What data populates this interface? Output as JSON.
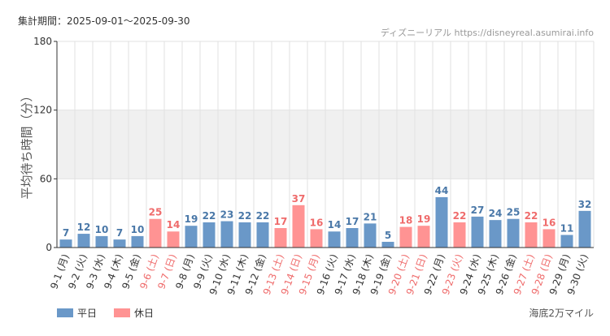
{
  "header": {
    "period_label": "集計期間：2025-09-01～2025-09-30",
    "source_label": "ディズニーリアル https://disneyreal.asumirai.info"
  },
  "footer": {
    "credit": "海底2万マイル"
  },
  "colors": {
    "weekday": "#6a98c8",
    "holiday": "#ff9393",
    "weekday_text": "#4a78a8",
    "holiday_text": "#ef6b6b",
    "band": "#f0f0f0",
    "grid": "#e2e2e2"
  },
  "chart_data": {
    "type": "bar",
    "ylabel": "平均待ち時間（分）",
    "ylim": [
      0,
      180
    ],
    "yticks": [
      0,
      60,
      120,
      180
    ],
    "categories": [
      "9-1 (月)",
      "9-2 (火)",
      "9-3 (水)",
      "9-4 (木)",
      "9-5 (金)",
      "9-6 (土)",
      "9-7 (日)",
      "9-8 (月)",
      "9-9 (火)",
      "9-10 (水)",
      "9-11 (木)",
      "9-12 (金)",
      "9-13 (土)",
      "9-14 (日)",
      "9-15 (月)",
      "9-16 (火)",
      "9-17 (水)",
      "9-18 (木)",
      "9-19 (金)",
      "9-20 (土)",
      "9-21 (日)",
      "9-22 (月)",
      "9-23 (火)",
      "9-24 (水)",
      "9-25 (木)",
      "9-26 (金)",
      "9-27 (土)",
      "9-28 (日)",
      "9-29 (月)",
      "9-30 (火)"
    ],
    "values": [
      7,
      12,
      10,
      7,
      10,
      25,
      14,
      19,
      22,
      23,
      22,
      22,
      17,
      37,
      16,
      14,
      17,
      21,
      5,
      18,
      19,
      44,
      22,
      27,
      24,
      25,
      22,
      16,
      11,
      32
    ],
    "day_type": [
      "weekday",
      "weekday",
      "weekday",
      "weekday",
      "weekday",
      "holiday",
      "holiday",
      "weekday",
      "weekday",
      "weekday",
      "weekday",
      "weekday",
      "holiday",
      "holiday",
      "holiday",
      "weekday",
      "weekday",
      "weekday",
      "weekday",
      "holiday",
      "holiday",
      "weekday",
      "holiday",
      "weekday",
      "weekday",
      "weekday",
      "holiday",
      "holiday",
      "weekday",
      "weekday"
    ],
    "legend": [
      {
        "key": "weekday",
        "label": "平日"
      },
      {
        "key": "holiday",
        "label": "休日"
      }
    ],
    "legend_position": "bottom-left",
    "grid": true
  }
}
